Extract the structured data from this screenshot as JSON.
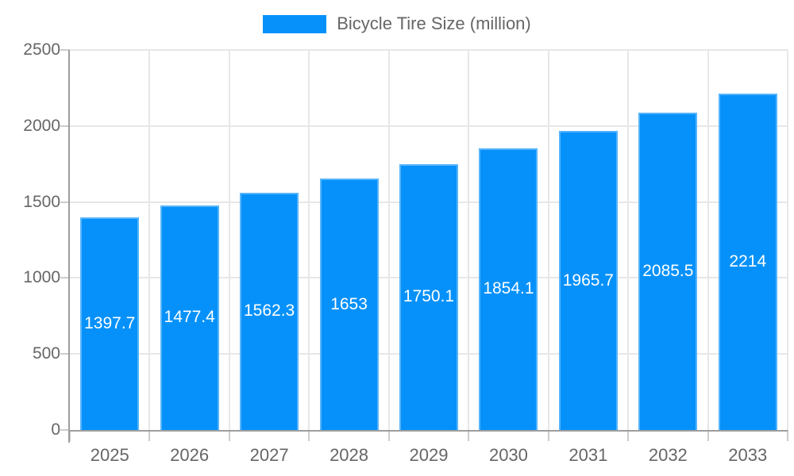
{
  "chart_data": {
    "type": "bar",
    "title": "Bicycle Tire Size (million)",
    "categories": [
      "2025",
      "2026",
      "2027",
      "2028",
      "2029",
      "2030",
      "2031",
      "2032",
      "2033"
    ],
    "series": [
      {
        "name": "Bicycle Tire Size (million)",
        "values": [
          1397.7,
          1477.4,
          1562.3,
          1653,
          1750.1,
          1854.1,
          1965.7,
          2085.5,
          2214
        ],
        "value_labels": [
          "1397.7",
          "1477.4",
          "1562.3",
          "1653",
          "1750.1",
          "1854.1",
          "1965.7",
          "2085.5",
          "2214"
        ]
      }
    ],
    "xlabel": "",
    "ylabel": "",
    "ylim": [
      0,
      2500
    ],
    "yticks": [
      "0",
      "500",
      "1000",
      "1500",
      "2000",
      "2500"
    ],
    "ytick_values": [
      0,
      500,
      1000,
      1500,
      2000,
      2500
    ],
    "grid": true,
    "legend_position": "top",
    "value_labels_inside_bars": true,
    "colors": {
      "bar": "#0691fa",
      "value_text": "#ffffff",
      "axis_text": "#666666",
      "grid": "#e7e7e7",
      "tick": "#cccccc",
      "axis_line": "#9e9e9e",
      "background": "#ffffff"
    }
  }
}
